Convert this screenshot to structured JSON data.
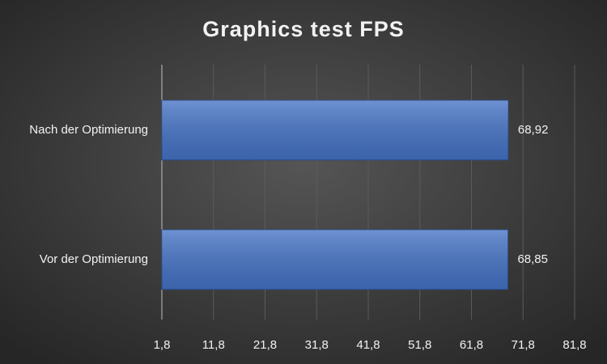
{
  "chart_data": {
    "type": "bar",
    "orientation": "horizontal",
    "title": "Graphics test FPS",
    "categories": [
      "Nach der Optimierung",
      "Vor der Optimierung"
    ],
    "values": [
      68.92,
      68.85
    ],
    "value_labels": [
      "68,92",
      "68,85"
    ],
    "color": "#4472c4",
    "xlim": [
      1.8,
      81.8
    ],
    "xticks": [
      {
        "value": 1.8,
        "label": "1,8"
      },
      {
        "value": 11.8,
        "label": "11,8"
      },
      {
        "value": 21.8,
        "label": "21,8"
      },
      {
        "value": 31.8,
        "label": "31,8"
      },
      {
        "value": 41.8,
        "label": "41,8"
      },
      {
        "value": 51.8,
        "label": "51,8"
      },
      {
        "value": 61.8,
        "label": "61,8"
      },
      {
        "value": 71.8,
        "label": "71,8"
      },
      {
        "value": 81.8,
        "label": "81,8"
      }
    ],
    "grid": true
  }
}
